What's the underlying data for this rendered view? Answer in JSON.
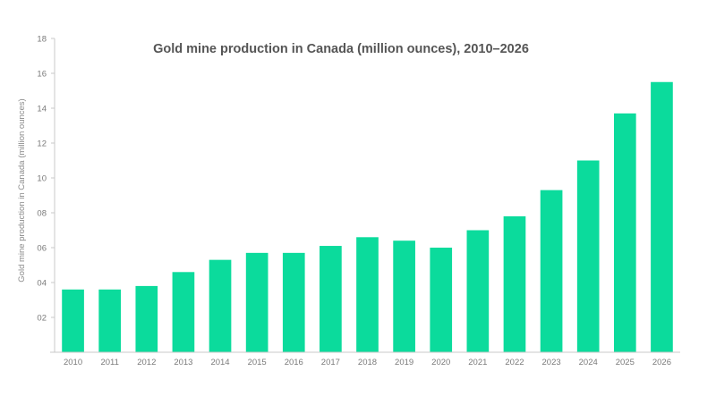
{
  "chart_data": {
    "type": "bar",
    "title": "Gold mine production in Canada (million ounces), 2010–2026",
    "xlabel": "",
    "ylabel": "Gold mine production  in  Canada  (million  ounces)",
    "categories": [
      "2010",
      "2011",
      "2012",
      "2013",
      "2014",
      "2015",
      "2016",
      "2017",
      "2018",
      "2019",
      "2020",
      "2021",
      "2022",
      "2023",
      "2024",
      "2025",
      "2026"
    ],
    "values": [
      3.6,
      3.6,
      3.8,
      4.6,
      5.3,
      5.7,
      5.7,
      6.1,
      6.6,
      6.4,
      6.0,
      7.0,
      7.8,
      9.3,
      11.0,
      13.7,
      15.5
    ],
    "ylim": [
      0,
      18
    ],
    "yticks": [
      2,
      4,
      6,
      8,
      10,
      12,
      14,
      16,
      18
    ],
    "ytick_labels": [
      "02",
      "04",
      "06",
      "08",
      "10",
      "12",
      "14",
      "16",
      "18"
    ],
    "grid": false,
    "legend": "none",
    "bar_color": "#0BDB9C"
  }
}
